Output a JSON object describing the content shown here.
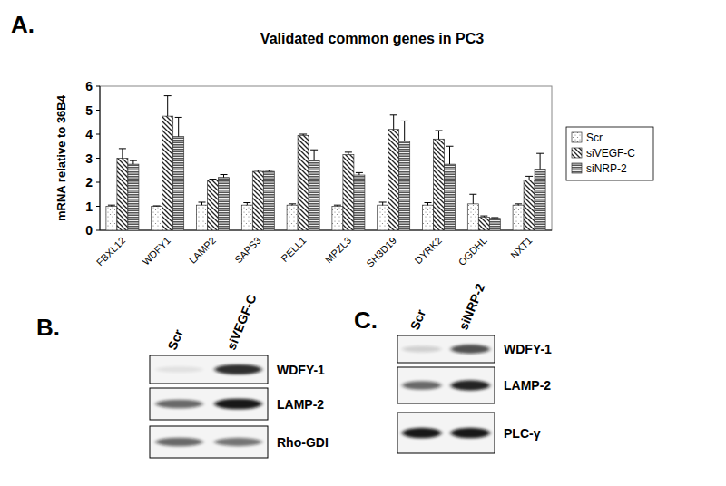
{
  "chart_data": {
    "type": "bar",
    "title": "Validated common genes in PC3",
    "y_label": "mRNA relative to 36B4",
    "categories": [
      "FBXL12",
      "WDFY1",
      "LAMP2",
      "SAPS3",
      "RELL1",
      "MPZL3",
      "SH3D19",
      "DYRK2",
      "OGDHL",
      "NXT1"
    ],
    "series": [
      {
        "name": "Scr",
        "color": "#ffffff",
        "values": [
          1.0,
          1.0,
          1.05,
          1.05,
          1.05,
          1.0,
          1.05,
          1.05,
          1.1,
          1.05
        ],
        "errors": [
          0.05,
          0.02,
          0.12,
          0.1,
          0.05,
          0.05,
          0.12,
          0.1,
          0.4,
          0.05
        ]
      },
      {
        "name": "siVEGF-C",
        "color": "#8a8a8a",
        "values": [
          3.0,
          4.75,
          2.1,
          2.45,
          3.95,
          3.15,
          4.2,
          3.8,
          0.55,
          2.1
        ],
        "errors": [
          0.4,
          0.85,
          0.03,
          0.05,
          0.05,
          0.1,
          0.6,
          0.35,
          0.05,
          0.15
        ]
      },
      {
        "name": "siNRP-2",
        "color": "#555555",
        "values": [
          2.75,
          3.9,
          2.2,
          2.45,
          2.9,
          2.3,
          3.7,
          2.75,
          0.5,
          2.55
        ],
        "errors": [
          0.15,
          0.8,
          0.12,
          0.05,
          0.45,
          0.1,
          0.85,
          0.75,
          0.03,
          0.65
        ]
      }
    ],
    "ylim": [
      0,
      6
    ],
    "yticks": [
      0,
      1,
      2,
      3,
      4,
      5,
      6
    ],
    "grid": false,
    "legend": "right"
  },
  "panel_a_label": "A.",
  "blots": [
    {
      "label": "B.",
      "lanes": [
        "Scr",
        "siVEGF-C"
      ],
      "rows": [
        "WDFY-1",
        "LAMP-2",
        "Rho-GDI"
      ]
    },
    {
      "label": "C.",
      "lanes": [
        "Scr",
        "siNRP-2"
      ],
      "rows": [
        "WDFY-1",
        "LAMP-2",
        "PLC-γ"
      ]
    }
  ]
}
